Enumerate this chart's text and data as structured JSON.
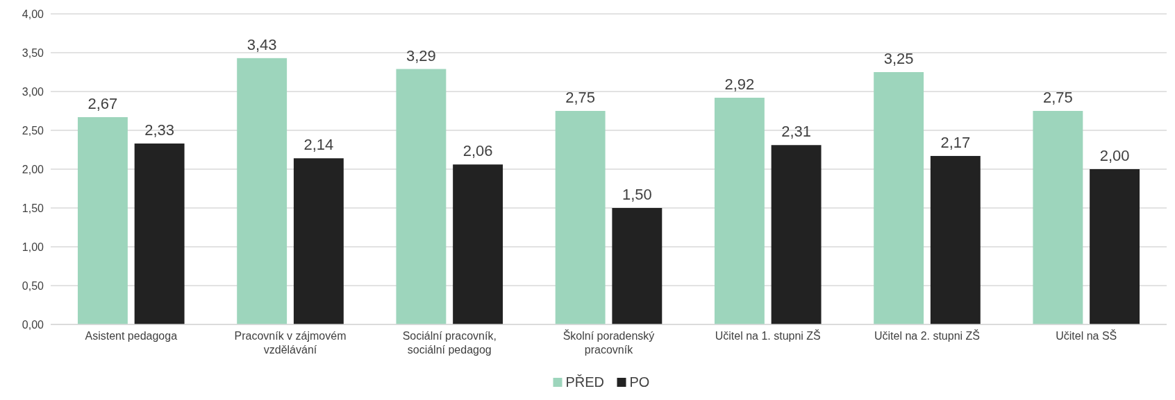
{
  "chart_data": {
    "type": "bar",
    "categories": [
      "Asistent pedagoga",
      "Pracovník v zájmovém vzdělávání",
      "Sociální pracovník, sociální pedagog",
      "Školní poradenský pracovník",
      "Učitel na 1. stupni ZŠ",
      "Učitel na 2. stupni ZŠ",
      "Učitel na SŠ"
    ],
    "series": [
      {
        "name": "PŘED",
        "color": "#9dd5bc",
        "values": [
          2.67,
          3.43,
          3.29,
          2.75,
          2.92,
          3.25,
          2.75
        ],
        "value_labels": [
          "2,67",
          "3,43",
          "3,29",
          "2,75",
          "2,92",
          "3,25",
          "2,75"
        ]
      },
      {
        "name": "PO",
        "color": "#222222",
        "values": [
          2.33,
          2.14,
          2.06,
          1.5,
          2.31,
          2.17,
          2.0
        ],
        "value_labels": [
          "2,33",
          "2,14",
          "2,06",
          "1,50",
          "2,31",
          "2,17",
          "2,00"
        ]
      }
    ],
    "ylim": [
      0,
      4
    ],
    "yticks": [
      {
        "value": 0,
        "label": "0,00"
      },
      {
        "value": 0.5,
        "label": "0,50"
      },
      {
        "value": 1,
        "label": "1,00"
      },
      {
        "value": 1.5,
        "label": "1,50"
      },
      {
        "value": 2,
        "label": "2,00"
      },
      {
        "value": 2.5,
        "label": "2,50"
      },
      {
        "value": 3,
        "label": "3,00"
      },
      {
        "value": 3.5,
        "label": "3,50"
      },
      {
        "value": 4,
        "label": "4,00"
      }
    ],
    "grid": "y",
    "legend": "bottom"
  }
}
